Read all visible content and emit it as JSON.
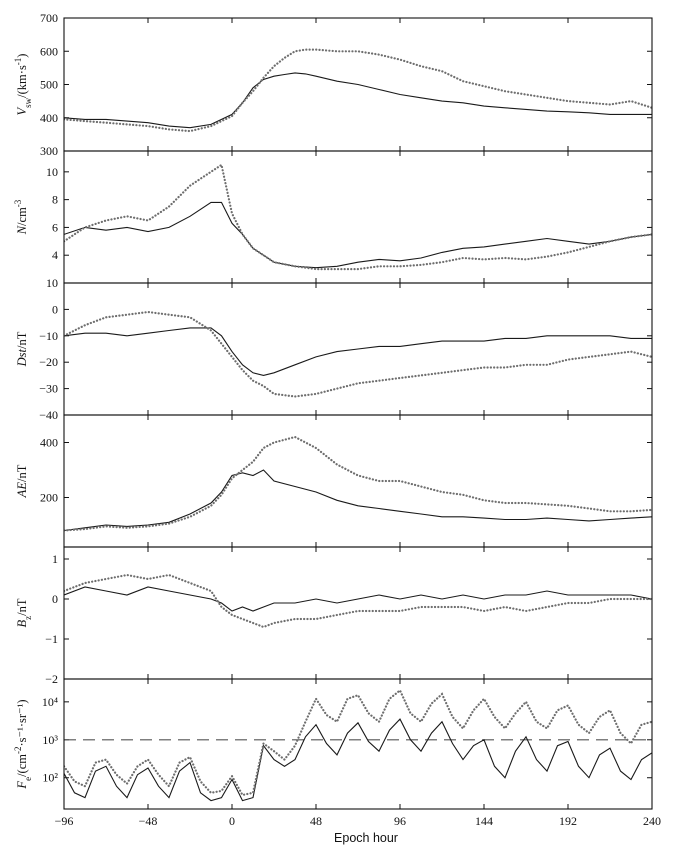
{
  "chart_data": [
    {
      "type": "line",
      "ylabel": "V_sw/(km·s⁻¹)",
      "ylabel_parts": {
        "base": "V",
        "sub": "sw",
        "rest": "/(km·s",
        "sup": "-1",
        "tail": ")"
      },
      "ylim": [
        300,
        700
      ],
      "yticks": [
        300,
        400,
        500,
        600,
        700
      ],
      "xlim": [
        -96,
        240
      ],
      "series": [
        {
          "style": "solid",
          "x": [
            -96,
            -84,
            -72,
            -60,
            -48,
            -36,
            -24,
            -12,
            0,
            6,
            12,
            18,
            24,
            30,
            36,
            42,
            48,
            60,
            72,
            84,
            96,
            108,
            120,
            132,
            144,
            156,
            168,
            180,
            192,
            204,
            216,
            228,
            240
          ],
          "y": [
            400,
            395,
            395,
            390,
            385,
            375,
            370,
            380,
            410,
            445,
            490,
            515,
            525,
            530,
            535,
            532,
            525,
            510,
            500,
            485,
            470,
            460,
            450,
            445,
            435,
            430,
            425,
            420,
            418,
            415,
            410,
            410,
            410
          ]
        },
        {
          "style": "dotted",
          "x": [
            -96,
            -84,
            -72,
            -60,
            -48,
            -36,
            -24,
            -12,
            0,
            6,
            12,
            18,
            24,
            30,
            36,
            42,
            48,
            60,
            72,
            84,
            96,
            108,
            120,
            132,
            144,
            156,
            168,
            180,
            192,
            204,
            216,
            228,
            240
          ],
          "y": [
            395,
            390,
            385,
            380,
            375,
            365,
            360,
            375,
            405,
            445,
            480,
            520,
            555,
            580,
            600,
            605,
            605,
            600,
            600,
            590,
            575,
            555,
            540,
            510,
            495,
            480,
            470,
            460,
            450,
            445,
            440,
            450,
            430
          ]
        }
      ]
    },
    {
      "type": "line",
      "ylabel": "N/cm⁻³",
      "ylabel_parts": {
        "base": "N",
        "sub": "",
        "rest": "/cm",
        "sup": "-3",
        "tail": ""
      },
      "ylim": [
        2,
        11.5
      ],
      "yticks": [
        4,
        6,
        8,
        10
      ],
      "xlim": [
        -96,
        240
      ],
      "series": [
        {
          "style": "solid",
          "x": [
            -96,
            -84,
            -72,
            -60,
            -48,
            -36,
            -24,
            -12,
            -6,
            0,
            6,
            12,
            18,
            24,
            36,
            48,
            60,
            72,
            84,
            96,
            108,
            120,
            132,
            144,
            156,
            168,
            180,
            192,
            204,
            216,
            228,
            240
          ],
          "y": [
            5.5,
            6.0,
            5.8,
            6.0,
            5.7,
            6.0,
            6.8,
            7.8,
            7.8,
            6.3,
            5.5,
            4.5,
            4.0,
            3.5,
            3.2,
            3.1,
            3.2,
            3.5,
            3.7,
            3.6,
            3.8,
            4.2,
            4.5,
            4.6,
            4.8,
            5.0,
            5.2,
            5.0,
            4.8,
            5.0,
            5.3,
            5.5
          ]
        },
        {
          "style": "dotted",
          "x": [
            -96,
            -84,
            -72,
            -60,
            -48,
            -36,
            -24,
            -12,
            -6,
            0,
            6,
            12,
            18,
            24,
            36,
            48,
            60,
            72,
            84,
            96,
            108,
            120,
            132,
            144,
            156,
            168,
            180,
            192,
            204,
            216,
            228,
            240
          ],
          "y": [
            5.0,
            6.0,
            6.5,
            6.8,
            6.5,
            7.5,
            9.0,
            10.0,
            10.5,
            7.0,
            5.5,
            4.5,
            4.0,
            3.5,
            3.2,
            3.0,
            3.0,
            3.0,
            3.2,
            3.2,
            3.3,
            3.5,
            3.8,
            3.7,
            3.8,
            3.7,
            3.9,
            4.2,
            4.6,
            5.0,
            5.3,
            5.5
          ]
        }
      ]
    },
    {
      "type": "line",
      "ylabel": "Dst/nT",
      "ylabel_parts": {
        "base": "Dst",
        "sub": "",
        "rest": "/nT",
        "sup": "",
        "tail": ""
      },
      "ylim": [
        -40,
        10
      ],
      "yticks": [
        -40,
        -30,
        -20,
        -10,
        0,
        10
      ],
      "xlim": [
        -96,
        240
      ],
      "series": [
        {
          "style": "solid",
          "x": [
            -96,
            -84,
            -72,
            -60,
            -48,
            -36,
            -24,
            -12,
            -6,
            0,
            6,
            12,
            18,
            24,
            36,
            48,
            60,
            72,
            84,
            96,
            108,
            120,
            132,
            144,
            156,
            168,
            180,
            192,
            204,
            216,
            228,
            240
          ],
          "y": [
            -10,
            -9,
            -9,
            -10,
            -9,
            -8,
            -7,
            -7,
            -10,
            -16,
            -21,
            -24,
            -25,
            -24,
            -21,
            -18,
            -16,
            -15,
            -14,
            -14,
            -13,
            -12,
            -12,
            -12,
            -11,
            -11,
            -10,
            -10,
            -10,
            -10,
            -11,
            -11
          ]
        },
        {
          "style": "dotted",
          "x": [
            -96,
            -84,
            -72,
            -60,
            -48,
            -36,
            -24,
            -12,
            -6,
            0,
            6,
            12,
            18,
            24,
            36,
            48,
            60,
            72,
            84,
            96,
            108,
            120,
            132,
            144,
            156,
            168,
            180,
            192,
            204,
            216,
            228,
            240
          ],
          "y": [
            -10,
            -6,
            -3,
            -2,
            -1,
            -2,
            -3,
            -8,
            -13,
            -18,
            -23,
            -27,
            -29,
            -32,
            -33,
            -32,
            -30,
            -28,
            -27,
            -26,
            -25,
            -24,
            -23,
            -22,
            -22,
            -21,
            -21,
            -19,
            -18,
            -17,
            -16,
            -18
          ]
        }
      ]
    },
    {
      "type": "line",
      "ylabel": "AE/nT",
      "ylabel_parts": {
        "base": "AE",
        "sub": "",
        "rest": "/nT",
        "sup": "",
        "tail": ""
      },
      "ylim": [
        20,
        500
      ],
      "yticks": [
        200,
        400
      ],
      "xlim": [
        -96,
        240
      ],
      "series": [
        {
          "style": "solid",
          "x": [
            -96,
            -84,
            -72,
            -60,
            -48,
            -36,
            -24,
            -12,
            -6,
            0,
            6,
            12,
            18,
            24,
            36,
            48,
            60,
            72,
            84,
            96,
            108,
            120,
            132,
            144,
            156,
            168,
            180,
            192,
            204,
            216,
            228,
            240
          ],
          "y": [
            80,
            90,
            100,
            95,
            100,
            110,
            140,
            180,
            220,
            280,
            290,
            280,
            300,
            260,
            240,
            220,
            190,
            170,
            160,
            150,
            140,
            130,
            130,
            125,
            120,
            120,
            125,
            120,
            115,
            120,
            125,
            130
          ]
        },
        {
          "style": "dotted",
          "x": [
            -96,
            -84,
            -72,
            -60,
            -48,
            -36,
            -24,
            -12,
            -6,
            0,
            6,
            12,
            18,
            24,
            36,
            48,
            60,
            72,
            84,
            96,
            108,
            120,
            132,
            144,
            156,
            168,
            180,
            192,
            204,
            216,
            228,
            240
          ],
          "y": [
            80,
            85,
            95,
            90,
            95,
            105,
            130,
            170,
            210,
            270,
            300,
            330,
            380,
            400,
            420,
            380,
            320,
            280,
            260,
            260,
            240,
            220,
            210,
            190,
            180,
            180,
            175,
            170,
            160,
            150,
            150,
            155
          ]
        }
      ]
    },
    {
      "type": "line",
      "ylabel": "B_z/nT",
      "ylabel_parts": {
        "base": "B",
        "sub": "z",
        "rest": "/nT",
        "sup": "",
        "tail": ""
      },
      "ylim": [
        -2,
        1.3
      ],
      "yticks": [
        -2,
        -1,
        0,
        1
      ],
      "xlim": [
        -96,
        240
      ],
      "series": [
        {
          "style": "solid",
          "x": [
            -96,
            -84,
            -72,
            -60,
            -48,
            -36,
            -24,
            -12,
            -6,
            0,
            6,
            12,
            18,
            24,
            36,
            48,
            60,
            72,
            84,
            96,
            108,
            120,
            132,
            144,
            156,
            168,
            180,
            192,
            204,
            216,
            228,
            240
          ],
          "y": [
            0.1,
            0.3,
            0.2,
            0.1,
            0.3,
            0.2,
            0.1,
            0.0,
            -0.1,
            -0.3,
            -0.2,
            -0.3,
            -0.2,
            -0.1,
            -0.1,
            0.0,
            -0.1,
            0.0,
            0.1,
            0.0,
            0.1,
            0.0,
            0.1,
            0.0,
            0.1,
            0.1,
            0.2,
            0.1,
            0.1,
            0.1,
            0.1,
            0.0
          ]
        },
        {
          "style": "dotted",
          "x": [
            -96,
            -84,
            -72,
            -60,
            -48,
            -36,
            -24,
            -12,
            -6,
            0,
            6,
            12,
            18,
            24,
            36,
            48,
            60,
            72,
            84,
            96,
            108,
            120,
            132,
            144,
            156,
            168,
            180,
            192,
            204,
            216,
            228,
            240
          ],
          "y": [
            0.2,
            0.4,
            0.5,
            0.6,
            0.5,
            0.6,
            0.4,
            0.2,
            -0.2,
            -0.4,
            -0.5,
            -0.6,
            -0.7,
            -0.6,
            -0.5,
            -0.5,
            -0.4,
            -0.3,
            -0.3,
            -0.3,
            -0.2,
            -0.2,
            -0.2,
            -0.3,
            -0.2,
            -0.3,
            -0.2,
            -0.1,
            -0.1,
            0.0,
            0.0,
            0.0
          ]
        }
      ]
    },
    {
      "type": "line",
      "ylabel": "F_e/(cm⁻²·s⁻¹·sr⁻¹)",
      "ylabel_parts": {
        "base": "F",
        "sub": "e",
        "rest": "/(cm",
        "sup": "-2",
        "tail": "·s⁻¹·sr⁻¹)"
      },
      "yscale": "log",
      "ylim": [
        15,
        40000
      ],
      "yticks": [
        100,
        1000,
        10000
      ],
      "yticklabels": [
        "10²",
        "10³",
        "10⁴"
      ],
      "xlim": [
        -96,
        240
      ],
      "xticks": [
        -96,
        -48,
        0,
        48,
        96,
        144,
        192,
        240
      ],
      "xlabel": "Epoch hour",
      "reference_line": {
        "y": 1000,
        "style": "dashed"
      },
      "series": [
        {
          "style": "solid",
          "x": [
            -96,
            -90,
            -84,
            -78,
            -72,
            -66,
            -60,
            -54,
            -48,
            -42,
            -36,
            -30,
            -24,
            -18,
            -12,
            -6,
            0,
            6,
            12,
            18,
            24,
            30,
            36,
            42,
            48,
            54,
            60,
            66,
            72,
            78,
            84,
            90,
            96,
            102,
            108,
            114,
            120,
            126,
            132,
            138,
            144,
            150,
            156,
            162,
            168,
            174,
            180,
            186,
            192,
            198,
            204,
            210,
            216,
            222,
            228,
            234,
            240
          ],
          "y": [
            130,
            40,
            30,
            150,
            200,
            60,
            30,
            120,
            180,
            60,
            30,
            150,
            250,
            40,
            25,
            30,
            90,
            25,
            30,
            700,
            300,
            200,
            300,
            1200,
            2500,
            800,
            400,
            1500,
            2800,
            900,
            500,
            1800,
            3500,
            1000,
            500,
            1500,
            3000,
            800,
            300,
            700,
            1000,
            200,
            100,
            500,
            1200,
            300,
            150,
            700,
            900,
            200,
            100,
            400,
            600,
            150,
            90,
            300,
            450
          ]
        },
        {
          "style": "dotted",
          "x": [
            -96,
            -90,
            -84,
            -78,
            -72,
            -66,
            -60,
            -54,
            -48,
            -42,
            -36,
            -30,
            -24,
            -18,
            -12,
            -6,
            0,
            6,
            12,
            18,
            24,
            30,
            36,
            42,
            48,
            54,
            60,
            66,
            72,
            78,
            84,
            90,
            96,
            102,
            108,
            114,
            120,
            126,
            132,
            138,
            144,
            150,
            156,
            162,
            168,
            174,
            180,
            186,
            192,
            198,
            204,
            210,
            216,
            222,
            228,
            234,
            240
          ],
          "y": [
            200,
            80,
            60,
            250,
            300,
            120,
            70,
            200,
            300,
            120,
            60,
            250,
            350,
            80,
            40,
            45,
            110,
            35,
            40,
            800,
            500,
            300,
            700,
            3000,
            12000,
            4500,
            3000,
            12000,
            15000,
            5000,
            3000,
            12000,
            20000,
            5000,
            3000,
            9000,
            16000,
            4000,
            2000,
            6000,
            12000,
            4000,
            2000,
            5000,
            10000,
            3000,
            2000,
            6000,
            8000,
            2500,
            1500,
            4000,
            6000,
            1500,
            800,
            2500,
            3000
          ]
        }
      ]
    }
  ]
}
